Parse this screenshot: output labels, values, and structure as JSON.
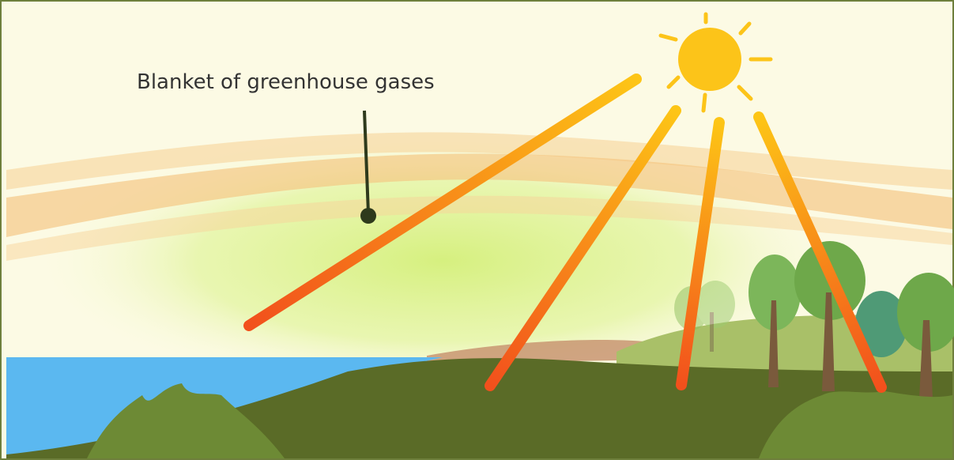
{
  "label": "Blanket of greenhouse gases"
}
